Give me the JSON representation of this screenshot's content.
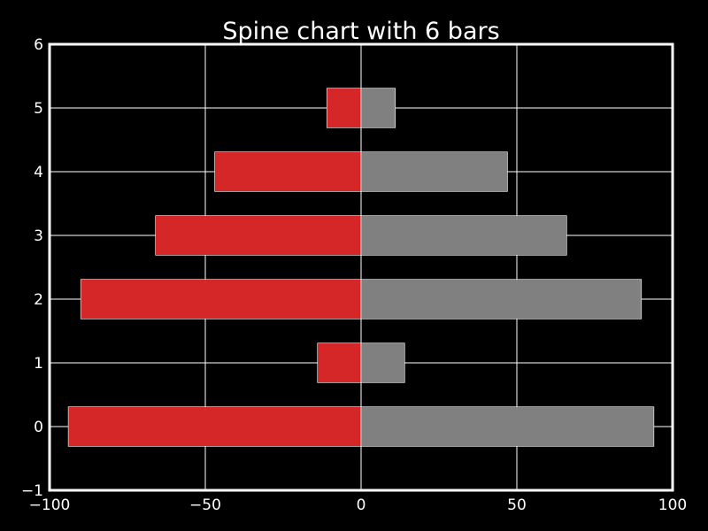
{
  "chart_data": {
    "type": "bar",
    "orientation": "horizontal",
    "subtype": "spine",
    "title": "Spine chart with 6 bars",
    "xlabel": "",
    "ylabel": "",
    "categories": [
      0,
      1,
      2,
      3,
      4,
      5
    ],
    "series": [
      {
        "values": [
          -94,
          -14,
          -90,
          -66,
          -47,
          -11
        ],
        "color": "#d62728"
      },
      {
        "values": [
          94,
          14,
          90,
          66,
          47,
          11
        ],
        "color": "#808080"
      }
    ],
    "xlim": [
      -100,
      100
    ],
    "ylim": [
      -1,
      6
    ],
    "xticks": [
      -100,
      -50,
      0,
      50,
      100
    ],
    "xtick_labels": [
      "−100",
      "−50",
      "0",
      "50",
      "100"
    ],
    "yticks": [
      -1,
      0,
      1,
      2,
      3,
      4,
      5,
      6
    ],
    "ytick_labels": [
      "−1",
      "0",
      "1",
      "2",
      "3",
      "4",
      "5",
      "6"
    ],
    "grid": true,
    "background": "#000000",
    "foreground": "#ffffff"
  }
}
